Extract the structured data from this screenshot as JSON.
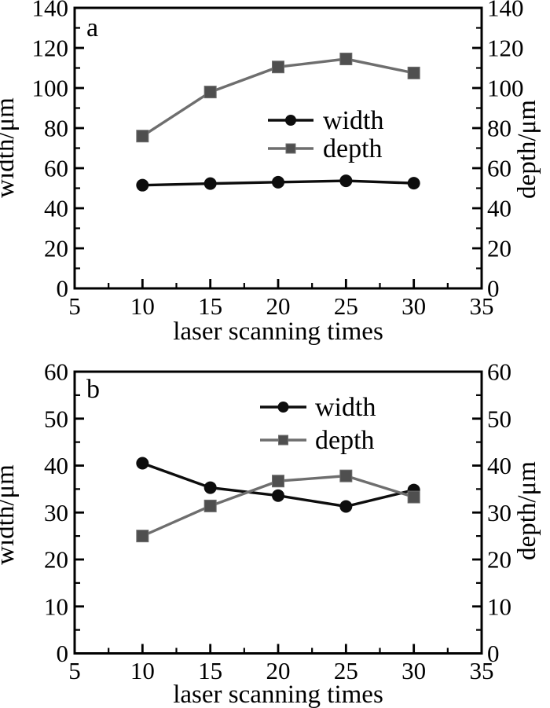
{
  "page": {
    "background": "#ffffff"
  },
  "chart_data": [
    {
      "id": "a",
      "type": "line",
      "panel_label": "a",
      "xlabel": "laser scanning times",
      "ylabel_left": "width/μm",
      "ylabel_right": "depth/μm",
      "xlim": [
        5,
        35
      ],
      "ylim": [
        0,
        140
      ],
      "x_major_ticks": [
        5,
        10,
        15,
        20,
        25,
        30,
        35
      ],
      "x_minor_ticks": [
        7.5,
        12.5,
        17.5,
        22.5,
        27.5,
        32.5
      ],
      "y_major_ticks": [
        0,
        20,
        40,
        60,
        80,
        100,
        120,
        140
      ],
      "y_minor_ticks": [
        10,
        30,
        50,
        70,
        90,
        110,
        130
      ],
      "grid": false,
      "legend_position": "center-right",
      "x": [
        10,
        15,
        20,
        25,
        30
      ],
      "series": [
        {
          "name": "width",
          "marker": "circle",
          "line_color": "#0d0d0d",
          "marker_color": "#0d0d0d",
          "values": [
            51.5,
            52.3,
            53.0,
            53.7,
            52.5
          ]
        },
        {
          "name": "depth",
          "marker": "square",
          "line_color": "#6e6e6e",
          "marker_color": "#4f4f4f",
          "values": [
            76,
            98,
            110.5,
            114.5,
            107.5
          ]
        }
      ]
    },
    {
      "id": "b",
      "type": "line",
      "panel_label": "b",
      "xlabel": "laser scanning times",
      "ylabel_left": "width/μm",
      "ylabel_right": "depth/μm",
      "xlim": [
        5,
        35
      ],
      "ylim": [
        0,
        60
      ],
      "x_major_ticks": [
        5,
        10,
        15,
        20,
        25,
        30,
        35
      ],
      "x_minor_ticks": [
        7.5,
        12.5,
        17.5,
        22.5,
        27.5,
        32.5
      ],
      "y_major_ticks": [
        0,
        10,
        20,
        30,
        40,
        50,
        60
      ],
      "y_minor_ticks": [
        5,
        15,
        25,
        35,
        45,
        55
      ],
      "grid": false,
      "legend_position": "top-center",
      "x": [
        10,
        15,
        20,
        25,
        30
      ],
      "series": [
        {
          "name": "width",
          "marker": "circle",
          "line_color": "#0d0d0d",
          "marker_color": "#0d0d0d",
          "values": [
            40.5,
            35.3,
            33.6,
            31.3,
            34.8
          ]
        },
        {
          "name": "depth",
          "marker": "square",
          "line_color": "#6e6e6e",
          "marker_color": "#4f4f4f",
          "values": [
            25.0,
            31.4,
            36.7,
            37.8,
            33.3
          ]
        }
      ]
    }
  ]
}
